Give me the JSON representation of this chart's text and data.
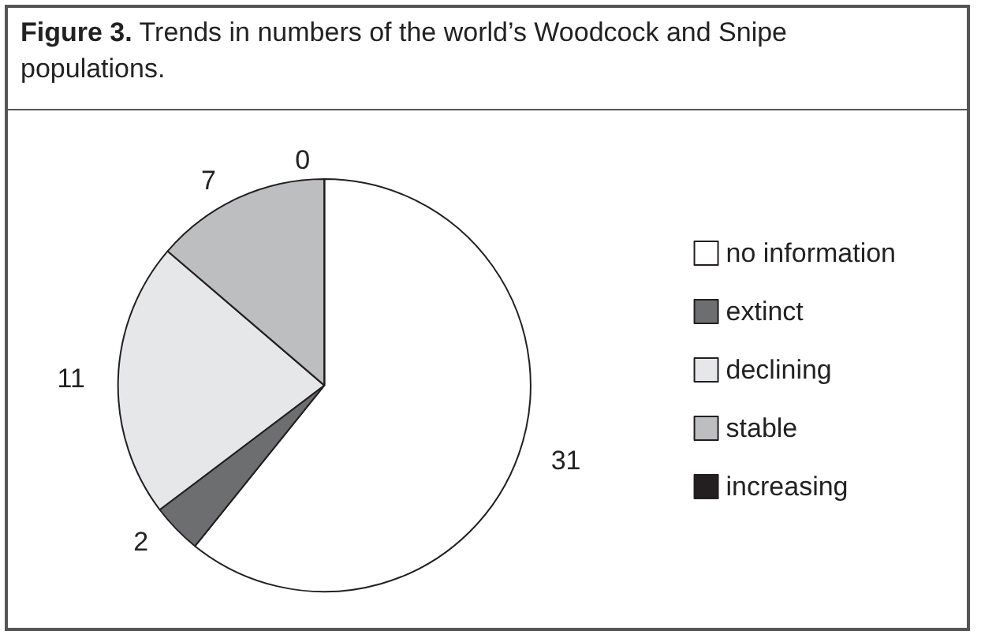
{
  "chart_data": {
    "type": "pie",
    "title": "Figure 3. Trends in numbers of the world’s Woodcock and Snipe populations.",
    "categories": [
      "no information",
      "extinct",
      "declining",
      "stable",
      "increasing"
    ],
    "values": [
      31,
      2,
      11,
      7,
      0
    ],
    "colors": [
      "#ffffff",
      "#6d6e70",
      "#e6e7e8",
      "#bcbec0",
      "#231f20"
    ],
    "value_labels": [
      "31",
      "2",
      "11",
      "7",
      "0"
    ],
    "legend": "right"
  }
}
